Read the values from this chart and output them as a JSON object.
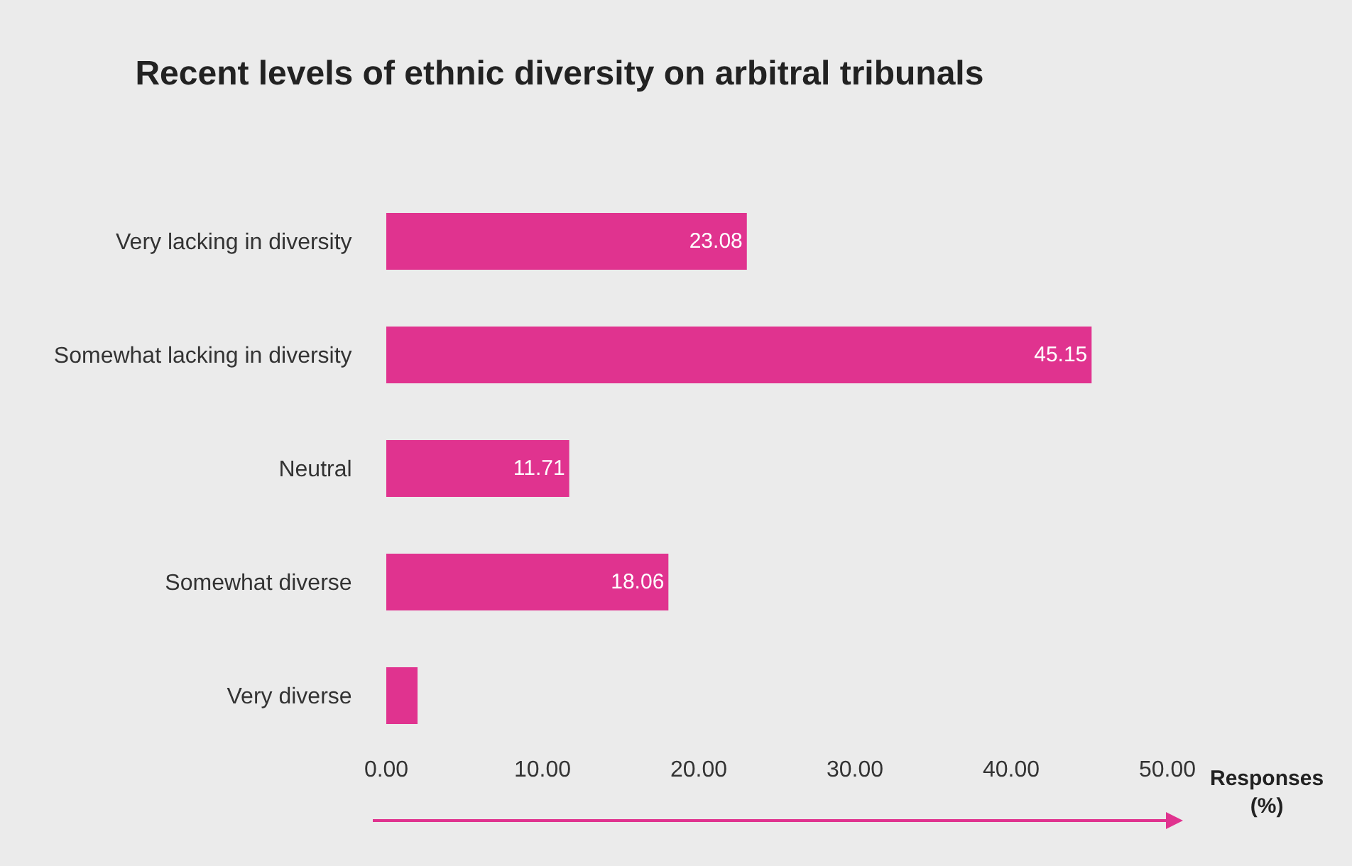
{
  "chart_data": {
    "type": "bar",
    "orientation": "horizontal",
    "title": "Recent levels of ethnic diversity on arbitral tribunals",
    "xlabel": "Responses\n(%)",
    "categories": [
      "Very lacking in diversity",
      "Somewhat lacking in diversity",
      "Neutral",
      "Somewhat diverse",
      "Very diverse"
    ],
    "values": [
      23.08,
      45.15,
      11.71,
      18.06,
      2.0
    ],
    "value_labels": [
      "23.08",
      "45.15",
      "11.71",
      "18.06",
      null
    ],
    "color": "#e0338f",
    "xlim": [
      0,
      50
    ],
    "xticks": [
      {
        "value": 0,
        "label": "0.00"
      },
      {
        "value": 10,
        "label": "10.00"
      },
      {
        "value": 20,
        "label": "20.00"
      },
      {
        "value": 30,
        "label": "30.00"
      },
      {
        "value": 40,
        "label": "40.00"
      },
      {
        "value": 50,
        "label": "50.00"
      }
    ]
  }
}
